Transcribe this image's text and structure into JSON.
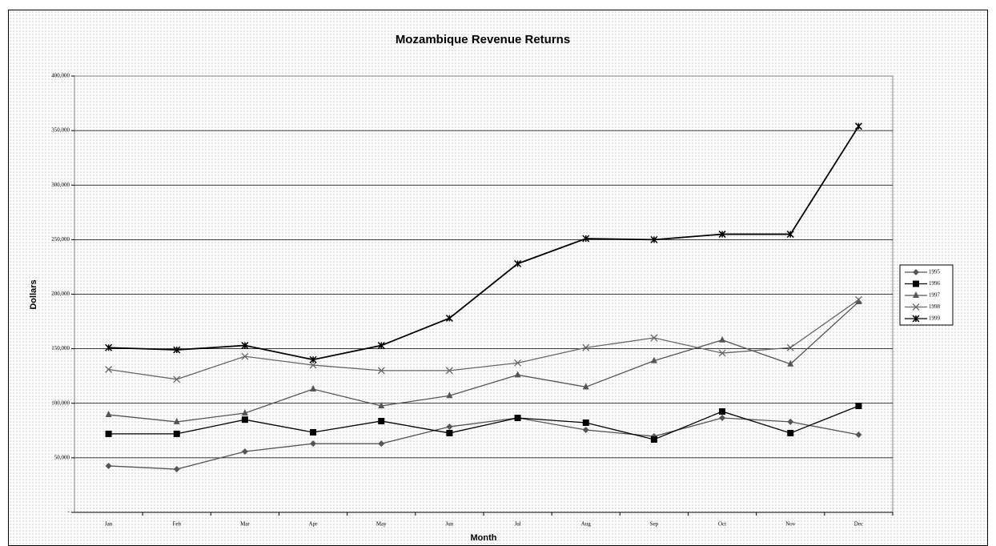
{
  "chart_data": {
    "type": "line",
    "title": "Mozambique Revenue Returns",
    "x_label": "Month",
    "y_label": "Dollars",
    "categories": [
      "Jan",
      "Feb",
      "Mar",
      "Apr",
      "May",
      "Jun",
      "Jul",
      "Aug",
      "Sep",
      "Oct",
      "Nov",
      "Dec"
    ],
    "series": [
      {
        "name": "1995",
        "color": "#555555",
        "marker": "diamond",
        "values": [
          42600,
          39600,
          55800,
          63000,
          63000,
          78500,
          86600,
          75600,
          69700,
          86600,
          83000,
          71200
        ]
      },
      {
        "name": "1996",
        "color": "#000000",
        "marker": "square",
        "values": [
          72000,
          72000,
          85000,
          73400,
          83700,
          72700,
          86600,
          82200,
          66800,
          92500,
          72700,
          97600
        ]
      },
      {
        "name": "1997",
        "color": "#555555",
        "marker": "triangle",
        "values": [
          89500,
          83000,
          91000,
          113000,
          97600,
          107000,
          126000,
          115000,
          139000,
          158000,
          136000,
          193000
        ]
      },
      {
        "name": "1998",
        "color": "#666666",
        "marker": "x",
        "values": [
          131000,
          122000,
          143000,
          135000,
          130000,
          130000,
          137000,
          151000,
          160000,
          146000,
          151000,
          195000
        ]
      },
      {
        "name": "1999",
        "color": "#000000",
        "marker": "star",
        "values": [
          151000,
          149000,
          153000,
          140000,
          153000,
          178000,
          228000,
          251000,
          250000,
          255000,
          255000,
          354000
        ]
      }
    ],
    "ylim": [
      0,
      400000
    ],
    "yticks": [
      {
        "value": 0,
        "label": "-"
      },
      {
        "value": 50000,
        "label": "50,000"
      },
      {
        "value": 100000,
        "label": "100,000"
      },
      {
        "value": 150000,
        "label": "150,000"
      },
      {
        "value": 200000,
        "label": "200,000"
      },
      {
        "value": 250000,
        "label": "250,000"
      },
      {
        "value": 300000,
        "label": "300,000"
      },
      {
        "value": 350000,
        "label": "350,000"
      },
      {
        "value": 400000,
        "label": "400,000"
      }
    ],
    "grid": true,
    "legend": "right"
  }
}
